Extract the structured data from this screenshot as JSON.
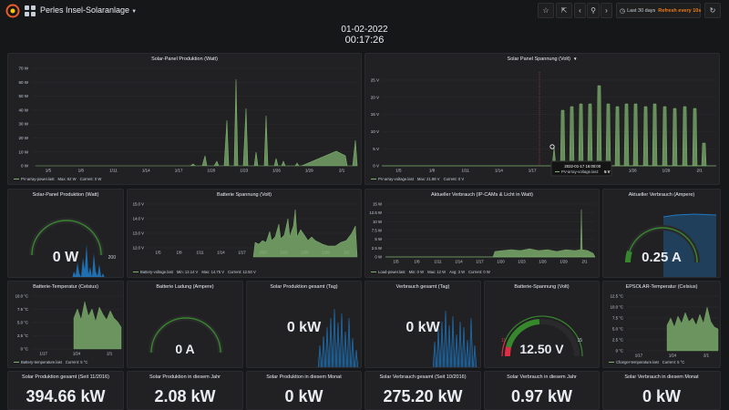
{
  "navbar": {
    "title": "Perles Insel-Solaranlage",
    "time_range": "Last 30 days",
    "refresh": "Refresh every 10s",
    "icons": [
      "grafana-logo-icon",
      "dashboards-grid-icon",
      "star-icon",
      "share-icon",
      "chevron-left-icon",
      "zoom-out-icon",
      "chevron-right-icon",
      "clock-icon",
      "refresh-icon"
    ]
  },
  "clock": {
    "date": "01-02-2022",
    "time": "00:17:26"
  },
  "colors": {
    "series_green": "#7eb26d",
    "series_blue": "#1f78c1",
    "threshold_red": "#e02f44",
    "refresh_orange": "#eb7b18",
    "gauge_track": "#2a2a2d"
  },
  "row1": {
    "left": {
      "title": "Solar-Panel Produktion (Watt)",
      "yticks": [
        "70 W",
        "60 W",
        "50 W",
        "40 W",
        "30 W",
        "20 W",
        "10 W",
        "0 W"
      ],
      "xticks": [
        "1/5",
        "1/8",
        "1/11",
        "1/14",
        "1/17",
        "1/20",
        "1/23",
        "1/26",
        "1/29",
        "2/1"
      ],
      "legend": {
        "series": "PV-array-power.last",
        "max": "Max: 62 W",
        "current": "Current: 0 W"
      }
    },
    "right": {
      "title": "Solar Panel Spannung (Volt)",
      "yticks": [
        "25 V",
        "20 V",
        "15 V",
        "10 V",
        "5 V",
        "0 V"
      ],
      "xticks": [
        "1/5",
        "1/8",
        "1/11",
        "1/14",
        "1/17",
        "1/20",
        "1/23",
        "1/26",
        "1/29",
        "2/1"
      ],
      "legend": {
        "series": "PV-array-voltage.last",
        "max": "Max: 21.88 V",
        "current": "Current: 0 V"
      },
      "tooltip": {
        "time": "2022-01-17 16:00:00",
        "series": "PV-array-voltage.last:",
        "value": "5 V"
      }
    }
  },
  "row2": {
    "gauge_prod": {
      "title": "Solar-Panel Produktion (Watt)",
      "value": "0 W",
      "max": "200",
      "min": "0"
    },
    "battery_voltage": {
      "title": "Batterie Spannung (Volt)",
      "yticks": [
        "15.0 V",
        "14.0 V",
        "13.0 V",
        "12.0 V"
      ],
      "xticks": [
        "1/5",
        "1/8",
        "1/11",
        "1/14",
        "1/17",
        "1/20",
        "1/23",
        "1/26",
        "1/29",
        "2/1"
      ],
      "legend": {
        "series": "Battery-voltage.last",
        "min": "Min: 12.14 V",
        "max": "Max: 14.75 V",
        "current": "Current: 12.50 V"
      }
    },
    "consumption": {
      "title": "Aktueller Verbrauch (IP-CAMs & Licht in Watt)",
      "yticks": [
        "15 W",
        "12.5 W",
        "10 W",
        "7.5 W",
        "5 W",
        "2.5 W",
        "0 W"
      ],
      "xticks": [
        "1/5",
        "1/8",
        "1/11",
        "1/14",
        "1/17",
        "1/20",
        "1/23",
        "1/26",
        "1/29",
        "2/1"
      ],
      "legend": {
        "series": "Load-power.last",
        "min": "Min: 0 W",
        "max": "Max: 12 W",
        "avg": "Avg: 3 W",
        "current": "Current: 0 W"
      }
    },
    "gauge_ampere": {
      "title": "Aktueller Verbrauch (Ampere)",
      "value": "0.25 A"
    }
  },
  "row3": {
    "battery_temp": {
      "title": "Batterie-Temperatur (Celsius)",
      "yticks": [
        "10.0 °C",
        "7.5 °C",
        "5.0 °C",
        "2.5 °C",
        "0 °C"
      ],
      "xticks": [
        "1/17",
        "1/24",
        "2/1"
      ],
      "legend": {
        "series": "Battery-temperature.last",
        "current": "Current: 5 °C"
      }
    },
    "battery_charge": {
      "title": "Batterie Ladung (Ampere)",
      "value": "0 A"
    },
    "solar_day": {
      "title": "Solar Produktion gesamt (Tag)",
      "value": "0 kW"
    },
    "usage_day": {
      "title": "Verbrauch gesamt (Tag)",
      "value": "0 kW"
    },
    "battery_gauge": {
      "title": "Batterie-Spannung (Volt)",
      "value": "12.50 V",
      "min": "11",
      "max": "15"
    },
    "epsolar_temp": {
      "title": "EPSOLAR-Temperatur (Celsius)",
      "yticks": [
        "12.5 °C",
        "10.0 °C",
        "7.5 °C",
        "5.0 °C",
        "2.5 °C",
        "0 °C"
      ],
      "xticks": [
        "1/17",
        "1/24",
        "2/1"
      ],
      "legend": {
        "series": "Charger-temperature.last",
        "current": "Current: 5 °C"
      }
    }
  },
  "row4": [
    {
      "title": "Solar Produktion gesamt (Seit 11/2016)",
      "value": "394.66 kW"
    },
    {
      "title": "Solar Produktion in diesem Jahr",
      "value": "2.08 kW"
    },
    {
      "title": "Solar Produktion in diesem Monat",
      "value": "0 kW"
    },
    {
      "title": "Solar Verbrauch gesamt (Seit 10/2016)",
      "value": "275.20 kW"
    },
    {
      "title": "Solar Verbrauch in diesem Jahr",
      "value": "0.97 kW"
    },
    {
      "title": "Solar Verbrauch in diesem Monat",
      "value": "0 kW"
    }
  ]
}
